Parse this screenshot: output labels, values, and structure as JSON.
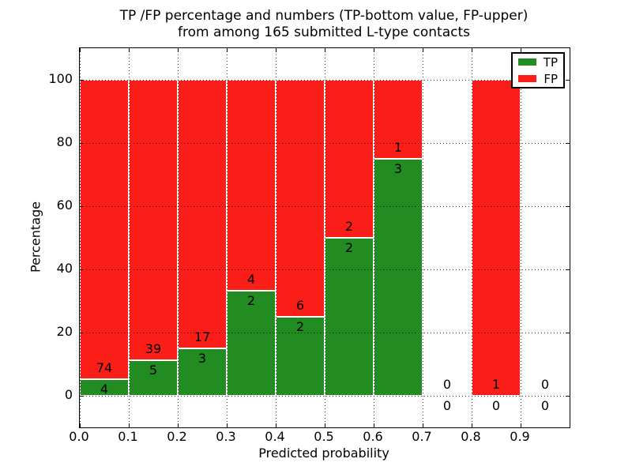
{
  "figure": {
    "title_line1": "TP /FP percentage and numbers (TP-bottom value, FP-upper)",
    "title_line2": "from among 165 submitted L-type contacts"
  },
  "colors": {
    "tp_green": "#228b22",
    "fp_red": "#fb1d17",
    "bar_edge": "#ffffff",
    "grid": "#000000",
    "frame": "#000000"
  },
  "chart_data": {
    "type": "bar",
    "stacked": true,
    "title": "TP /FP percentage and numbers (TP-bottom value, FP-upper)\nfrom among 165 submitted L-type contacts",
    "xlabel": "Predicted probability",
    "ylabel": "Percentage",
    "xlim": [
      0.0,
      1.0
    ],
    "ylim": [
      -10,
      110
    ],
    "bin_width": 0.1,
    "grid": "dotted",
    "x_tick_labels": [
      "0.0",
      "0.1",
      "0.2",
      "0.3",
      "0.4",
      "0.5",
      "0.6",
      "0.7",
      "0.8",
      "0.9"
    ],
    "y_tick_values": [
      0,
      20,
      40,
      60,
      80,
      100
    ],
    "legend": {
      "position": "upper right",
      "entries": [
        {
          "label": "TP",
          "color": "#228b22"
        },
        {
          "label": "FP",
          "color": "#fb1d17"
        }
      ]
    },
    "series": [
      {
        "name": "TP",
        "color": "#228b22"
      },
      {
        "name": "FP",
        "color": "#fb1d17"
      }
    ],
    "total_contacts": 165,
    "bins": [
      {
        "range": [
          0.0,
          0.1
        ],
        "tp": 4,
        "fp": 74,
        "tp_pct": 5.13,
        "fp_pct": 94.87
      },
      {
        "range": [
          0.1,
          0.2
        ],
        "tp": 5,
        "fp": 39,
        "tp_pct": 11.36,
        "fp_pct": 88.64
      },
      {
        "range": [
          0.2,
          0.3
        ],
        "tp": 3,
        "fp": 17,
        "tp_pct": 15.0,
        "fp_pct": 85.0
      },
      {
        "range": [
          0.3,
          0.4
        ],
        "tp": 2,
        "fp": 4,
        "tp_pct": 33.33,
        "fp_pct": 66.67
      },
      {
        "range": [
          0.4,
          0.5
        ],
        "tp": 2,
        "fp": 6,
        "tp_pct": 25.0,
        "fp_pct": 75.0
      },
      {
        "range": [
          0.5,
          0.6
        ],
        "tp": 2,
        "fp": 2,
        "tp_pct": 50.0,
        "fp_pct": 50.0
      },
      {
        "range": [
          0.6,
          0.7
        ],
        "tp": 3,
        "fp": 1,
        "tp_pct": 75.0,
        "fp_pct": 25.0
      },
      {
        "range": [
          0.7,
          0.8
        ],
        "tp": 0,
        "fp": 0,
        "tp_pct": 0,
        "fp_pct": 0
      },
      {
        "range": [
          0.8,
          0.9
        ],
        "tp": 0,
        "fp": 1,
        "tp_pct": 0,
        "fp_pct": 100.0
      },
      {
        "range": [
          0.9,
          1.0
        ],
        "tp": 0,
        "fp": 0,
        "tp_pct": 0,
        "fp_pct": 0
      }
    ]
  }
}
